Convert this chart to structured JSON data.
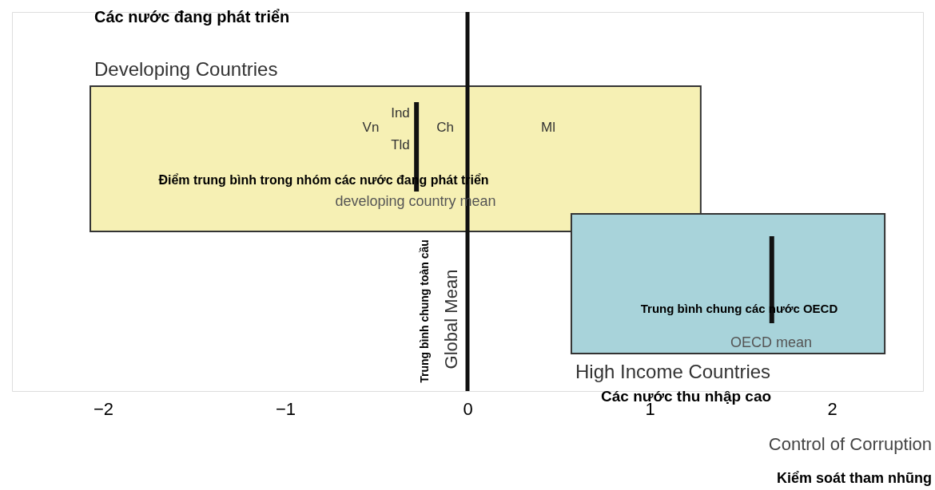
{
  "chart_data": {
    "type": "bar",
    "orientation": "horizontal",
    "categories": [
      "Developing Countries",
      "High Income Countries"
    ],
    "base": [
      -2.07,
      0.57
    ],
    "values": [
      3.35,
      1.72
    ],
    "colors": [
      "#f6f0b4",
      "#a8d3da"
    ],
    "xlim": [
      -2.5,
      2.5
    ],
    "xticks": [
      -2,
      -1,
      0,
      1,
      2
    ],
    "xlabel": "Control of Corruption",
    "tick_labels": "x",
    "grid": false,
    "ref_lines": [
      {
        "axis": "x",
        "value": 0,
        "label": "Global Mean"
      },
      {
        "axis": "x",
        "value": -0.28,
        "label": "developing country mean"
      },
      {
        "axis": "x",
        "value": 1.67,
        "label": "OECD mean"
      }
    ],
    "annotations": [
      "Các nước đang phát triển",
      "Các nước thu nhập cao",
      "Điểm trung bình trong nhóm các nước đang phát triển",
      "Trung bình chung các nước OECD",
      "Trung bình chung toàn cầu",
      "Kiểm soát tham nhũng",
      "Vn",
      "Ind",
      "Tld",
      "Ch",
      "Ml"
    ]
  }
}
